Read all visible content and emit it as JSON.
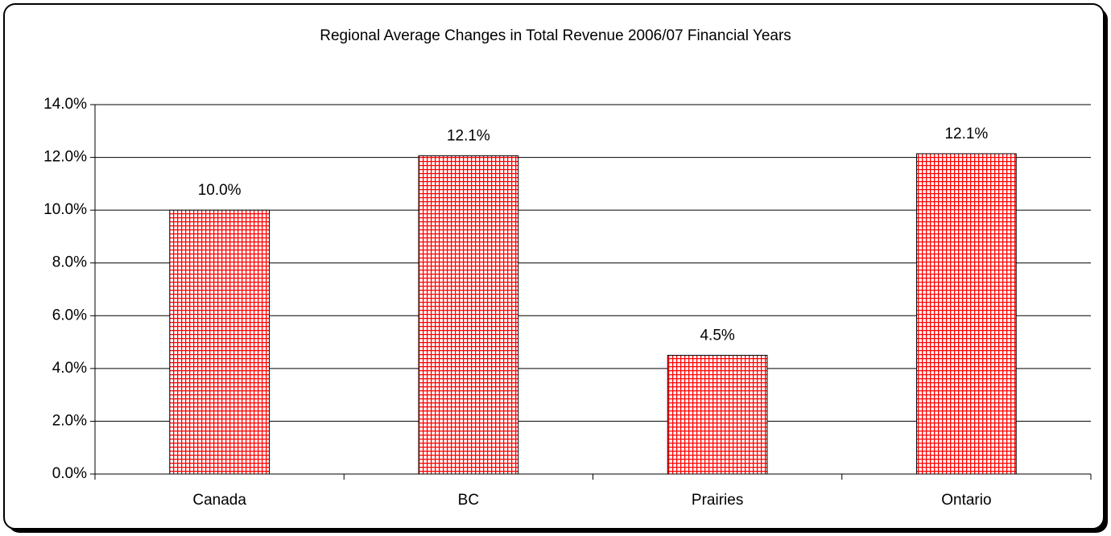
{
  "chart_data": {
    "type": "bar",
    "title": "Regional Average Changes in Total Revenue 2006/07 Financial Years",
    "categories": [
      "Canada",
      "BC",
      "Prairies",
      "Ontario"
    ],
    "values": [
      10.0,
      12.06,
      4.5,
      12.14
    ],
    "value_labels": [
      "10.0%",
      "12.1%",
      "4.5%",
      "12.1%"
    ],
    "color": "#ff0000",
    "ylim": [
      0,
      14
    ],
    "yticks": [
      {
        "value": 0,
        "label": "0.0%"
      },
      {
        "value": 2,
        "label": "2.0%"
      },
      {
        "value": 4,
        "label": "4.0%"
      },
      {
        "value": 6,
        "label": "6.0%"
      },
      {
        "value": 8,
        "label": "8.0%"
      },
      {
        "value": 10,
        "label": "10.0%"
      },
      {
        "value": 12,
        "label": "12.0%"
      },
      {
        "value": 14,
        "label": "14.0%"
      }
    ],
    "grid": true
  }
}
